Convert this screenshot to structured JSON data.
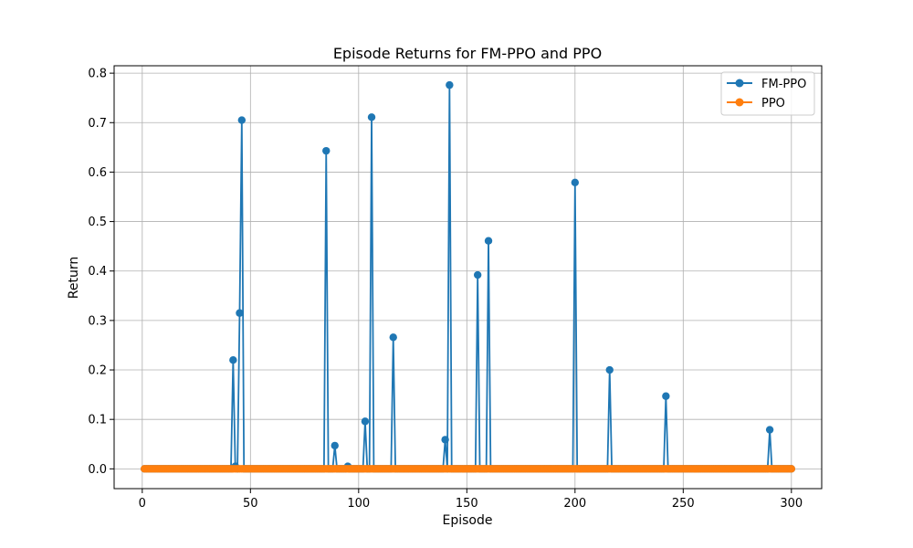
{
  "chart_data": {
    "type": "line",
    "title": "Episode Returns for FM-PPO and PPO",
    "xlabel": "Episode",
    "ylabel": "Return",
    "xlim": [
      -13,
      314
    ],
    "ylim": [
      -0.04,
      0.815
    ],
    "xticks": [
      0,
      50,
      100,
      150,
      200,
      250,
      300
    ],
    "yticks": [
      0.0,
      0.1,
      0.2,
      0.3,
      0.4,
      0.5,
      0.6,
      0.7,
      0.8
    ],
    "ytick_labels": [
      "0.0",
      "0.1",
      "0.2",
      "0.3",
      "0.4",
      "0.5",
      "0.6",
      "0.7",
      "0.8"
    ],
    "grid": true,
    "legend_position": "top-right",
    "x_start": 1,
    "x_end": 300,
    "series": [
      {
        "name": "FM-PPO",
        "color": "#1f77b4",
        "peaks": [
          [
            42,
            0.22
          ],
          [
            43,
            0.005
          ],
          [
            45,
            0.315
          ],
          [
            46,
            0.705
          ],
          [
            85,
            0.643
          ],
          [
            89,
            0.047
          ],
          [
            95,
            0.005
          ],
          [
            103,
            0.096
          ],
          [
            106,
            0.711
          ],
          [
            116,
            0.266
          ],
          [
            140,
            0.059
          ],
          [
            142,
            0.776
          ],
          [
            155,
            0.392
          ],
          [
            160,
            0.461
          ],
          [
            200,
            0.579
          ],
          [
            216,
            0.2
          ],
          [
            242,
            0.147
          ],
          [
            290,
            0.079
          ]
        ],
        "baseline": 0.0
      },
      {
        "name": "PPO",
        "color": "#ff7f0e",
        "peaks": [],
        "baseline": 0.0
      }
    ]
  }
}
